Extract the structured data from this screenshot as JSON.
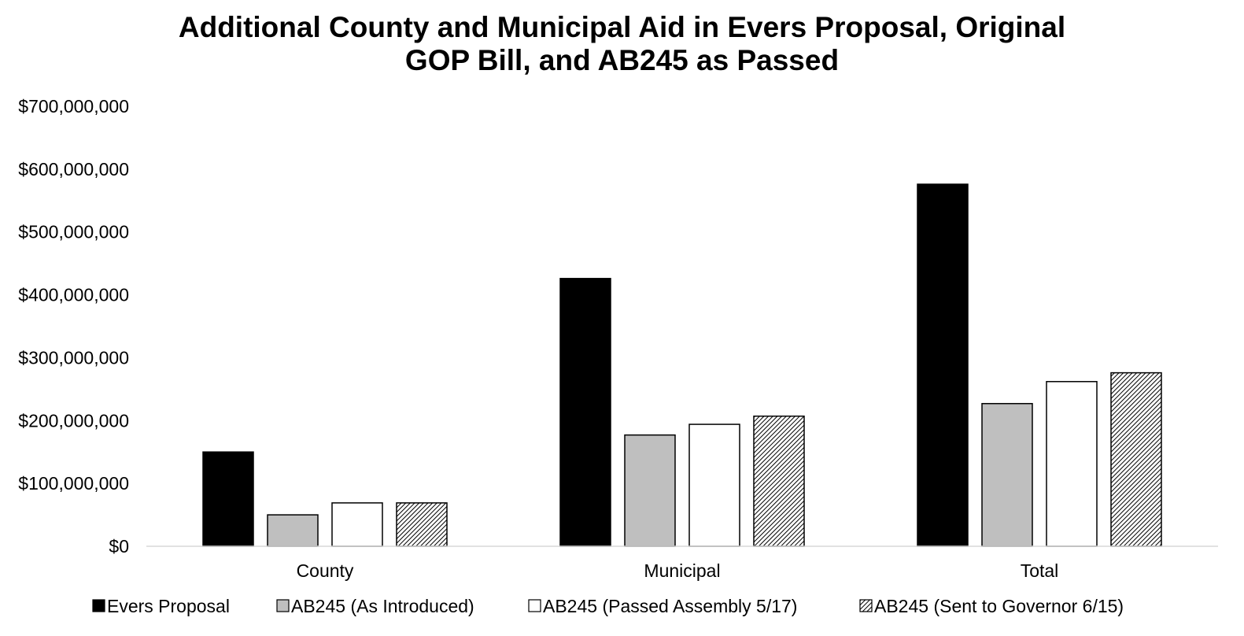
{
  "chart_data": {
    "type": "bar",
    "title_lines": [
      "Additional County and Municipal Aid in Evers Proposal, Original",
      "GOP Bill, and AB245 as Passed"
    ],
    "xlabel": "",
    "ylabel": "",
    "categories": [
      "County",
      "Municipal",
      "Total"
    ],
    "ylim": [
      0,
      700000000
    ],
    "yticks": [
      0,
      100000000,
      200000000,
      300000000,
      400000000,
      500000000,
      600000000,
      700000000
    ],
    "ytick_labels": [
      "$0",
      "$100,000,000",
      "$200,000,000",
      "$300,000,000",
      "$400,000,000",
      "$500,000,000",
      "$600,000,000",
      "$700,000,000"
    ],
    "grid": false,
    "legend_position": "bottom",
    "series": [
      {
        "name": "Evers Proposal",
        "values": [
          150000000,
          426000000,
          576000000
        ],
        "fill": "#000000",
        "pattern": "solid"
      },
      {
        "name": "AB245 (As Introduced)",
        "values": [
          50000000,
          177000000,
          227000000
        ],
        "fill": "#bfbfbf",
        "pattern": "solid"
      },
      {
        "name": "AB245 (Passed Assembly 5/17)",
        "values": [
          69000000,
          194000000,
          262000000
        ],
        "fill": "#ffffff",
        "pattern": "solid"
      },
      {
        "name": "AB245 (Sent to Governor 6/15)",
        "values": [
          69000000,
          207000000,
          276000000
        ],
        "fill": "#ffffff",
        "pattern": "diagonal-hatch"
      }
    ]
  }
}
